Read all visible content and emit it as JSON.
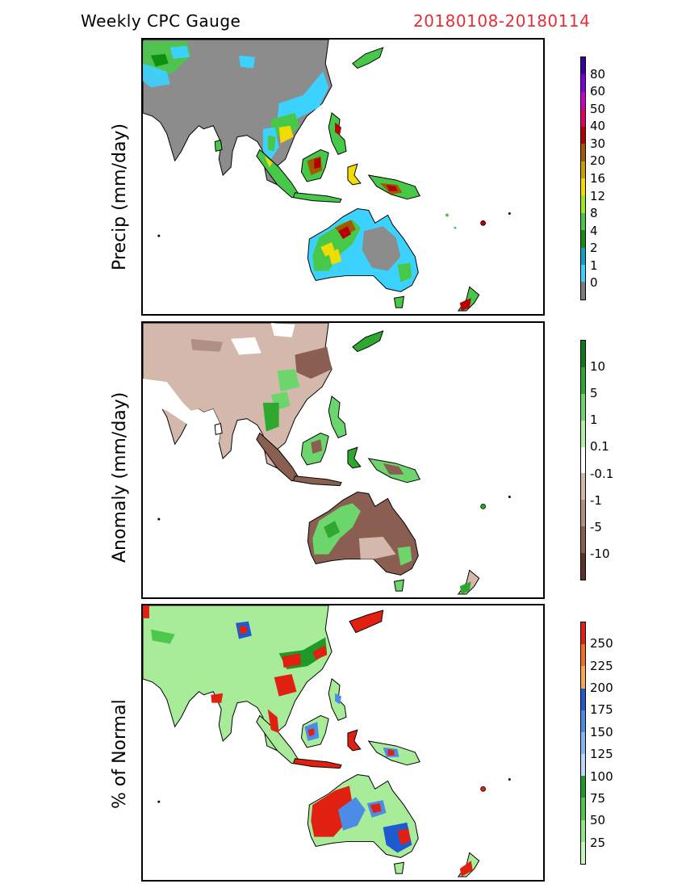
{
  "header": {
    "title": "Weekly CPC Gauge",
    "period": "20180108-20180114",
    "period_color": "#e0303a"
  },
  "panels": [
    {
      "id": "precip",
      "ylabel": "Precip (mm/day)",
      "land_base_color": "#8c8c8c",
      "colorbar": {
        "colors": [
          "#7d7d7d",
          "#3cd2ff",
          "#12a0c8",
          "#109010",
          "#48c848",
          "#a0e61e",
          "#f0dc00",
          "#c8a000",
          "#a05a00",
          "#b40000",
          "#e00060",
          "#c800c8",
          "#7800dc",
          "#3c00a0"
        ],
        "labels": [
          "0",
          "1",
          "2",
          "4",
          "8",
          "12",
          "16",
          "20",
          "30",
          "40",
          "50",
          "60",
          "80"
        ]
      }
    },
    {
      "id": "anomaly",
      "ylabel": "Anomaly (mm/day)",
      "land_base_color": "#d4b8ab",
      "colorbar": {
        "colors": [
          "#5a3228",
          "#8a5f52",
          "#b08f84",
          "#d4b8ab",
          "#ffffff",
          "#b2f0a8",
          "#6cd66c",
          "#2ea82e",
          "#0e7a1e"
        ],
        "labels": [
          "-10",
          "-5",
          "-1",
          "-0.1",
          "0.1",
          "1",
          "5",
          "10"
        ]
      }
    },
    {
      "id": "percent",
      "ylabel": "% of Normal",
      "land_base_color": "#a8ec9a",
      "colorbar": {
        "colors": [
          "#c8f5c0",
          "#8ee884",
          "#4cc84c",
          "#1e9a28",
          "#c0d8f8",
          "#84b6f2",
          "#4c8ce6",
          "#1e5ad0",
          "#f8a850",
          "#f07020",
          "#e02010"
        ],
        "labels": [
          "25",
          "50",
          "75",
          "100",
          "125",
          "150",
          "175",
          "200",
          "225",
          "250"
        ]
      }
    }
  ]
}
